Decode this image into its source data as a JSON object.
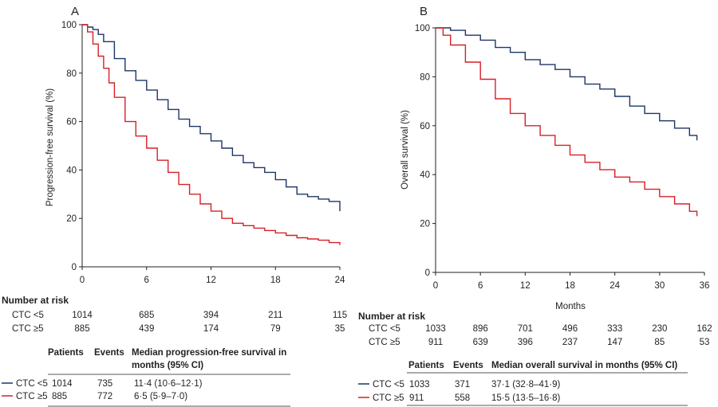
{
  "chart_data": [
    {
      "type": "line",
      "panel_label": "A",
      "xlabel": "",
      "ylabel": "Progression-free survival (%)",
      "xlim": [
        0,
        24
      ],
      "ylim": [
        0,
        100
      ],
      "xticks": [
        "0",
        "6",
        "12",
        "18",
        "24"
      ],
      "yticks": [
        "0",
        "20",
        "40",
        "60",
        "80",
        "100"
      ],
      "grid": false,
      "series": [
        {
          "name": "CTC <5",
          "color": "#1f3566",
          "x": [
            0,
            0.5,
            1,
            1.5,
            2,
            3,
            4,
            5,
            6,
            7,
            8,
            9,
            10,
            11,
            12,
            13,
            14,
            15,
            16,
            17,
            18,
            19,
            20,
            21,
            22,
            23,
            24
          ],
          "y": [
            100,
            99,
            98,
            96,
            93,
            86,
            81,
            77,
            73,
            69,
            65,
            61,
            58,
            55,
            52,
            49,
            46,
            43,
            41,
            39,
            36,
            33,
            30,
            29,
            28,
            27,
            23
          ]
        },
        {
          "name": "CTC ≥5",
          "color": "#d62027",
          "x": [
            0,
            0.5,
            1,
            1.5,
            2,
            2.5,
            3,
            4,
            5,
            6,
            7,
            8,
            9,
            10,
            11,
            12,
            13,
            14,
            15,
            16,
            17,
            18,
            19,
            20,
            21,
            22,
            23,
            24
          ],
          "y": [
            100,
            97,
            92,
            87,
            82,
            76,
            70,
            60,
            54,
            49,
            44,
            39,
            34,
            30,
            26,
            23,
            20,
            18,
            17,
            16,
            15,
            14,
            13,
            12,
            11.5,
            11,
            10,
            9
          ]
        }
      ],
      "number_at_risk": {
        "heading": "Number at risk",
        "rows": [
          {
            "label": "CTC <5",
            "values": [
              "1014",
              "685",
              "394",
              "211",
              "115"
            ]
          },
          {
            "label": "CTC ≥5",
            "values": [
              "885",
              "439",
              "174",
              "79",
              "35"
            ]
          }
        ]
      },
      "summary_table": {
        "headers": [
          "Patients",
          "Events",
          "Median progression-free survival in",
          "months (95% CI)"
        ],
        "rows": [
          {
            "label": "CTC <5",
            "color": "#1f3566",
            "patients": "1014",
            "events": "735",
            "median": "11·4 (10·6–12·1)"
          },
          {
            "label": "CTC ≥5",
            "color": "#d62027",
            "patients": "885",
            "events": "772",
            "median": "6·5 (5·9–7·0)"
          }
        ]
      }
    },
    {
      "type": "line",
      "panel_label": "B",
      "xlabel": "Months",
      "ylabel": "Overall survival (%)",
      "xlim": [
        0,
        36
      ],
      "ylim": [
        0,
        100
      ],
      "xticks": [
        "0",
        "6",
        "12",
        "18",
        "24",
        "30",
        "36"
      ],
      "yticks": [
        "0",
        "20",
        "40",
        "60",
        "80",
        "100"
      ],
      "grid": false,
      "series": [
        {
          "name": "CTC <5",
          "color": "#1f3566",
          "x": [
            0,
            2,
            4,
            6,
            8,
            10,
            12,
            14,
            16,
            18,
            20,
            22,
            24,
            26,
            28,
            30,
            32,
            34,
            35
          ],
          "y": [
            100,
            99,
            97,
            95,
            92,
            90,
            87,
            85,
            83,
            80,
            77,
            75,
            72,
            68,
            65,
            62,
            59,
            56,
            54
          ]
        },
        {
          "name": "CTC ≥5",
          "color": "#d62027",
          "x": [
            0,
            1,
            2,
            4,
            6,
            8,
            10,
            12,
            14,
            16,
            18,
            20,
            22,
            24,
            26,
            28,
            30,
            32,
            34,
            35
          ],
          "y": [
            100,
            97,
            93,
            86,
            79,
            71,
            65,
            60,
            56,
            52,
            48,
            45,
            42,
            39,
            37,
            34,
            31,
            28,
            25,
            23
          ]
        }
      ],
      "number_at_risk": {
        "heading": "Number at risk",
        "rows": [
          {
            "label": "CTC <5",
            "values": [
              "1033",
              "896",
              "701",
              "496",
              "333",
              "230",
              "162"
            ]
          },
          {
            "label": "CTC ≥5",
            "values": [
              "911",
              "639",
              "396",
              "237",
              "147",
              "85",
              "53"
            ]
          }
        ]
      },
      "summary_table": {
        "headers": [
          "Patients",
          "Events",
          "Median overall survival in months (95% CI)"
        ],
        "rows": [
          {
            "label": "CTC <5",
            "color": "#1f3566",
            "patients": "1033",
            "events": "371",
            "median": "37·1 (32·8–41·9)"
          },
          {
            "label": "CTC ≥5",
            "color": "#d62027",
            "patients": "911",
            "events": "558",
            "median": "15·5 (13·5–16·8)"
          }
        ]
      }
    }
  ]
}
